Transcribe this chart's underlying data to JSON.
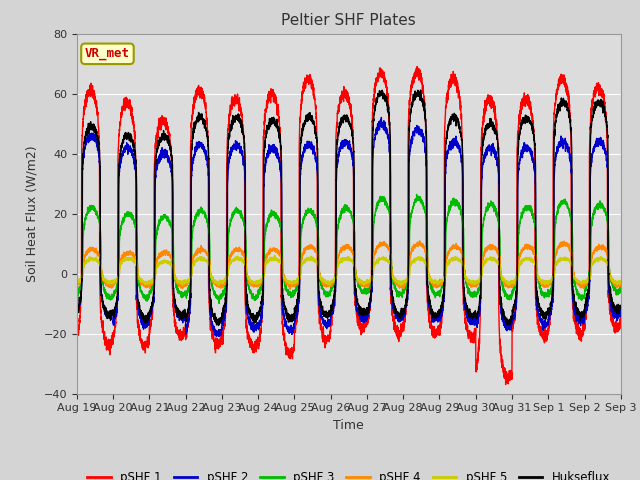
{
  "title": "Peltier SHF Plates",
  "ylabel": "Soil Heat Flux (W/m2)",
  "xlabel": "Time",
  "ylim": [
    -40,
    80
  ],
  "yticks": [
    -40,
    -20,
    0,
    20,
    40,
    60,
    80
  ],
  "plot_bg_color": "#dcdcdc",
  "fig_bg_color": "#d4d4d4",
  "vr_met_label": "VR_met",
  "legend_entries": [
    "pSHF 1",
    "pSHF 2",
    "pSHF 3",
    "pSHF 4",
    "pSHF 5",
    "Hukseflux"
  ],
  "line_colors": [
    "#ff0000",
    "#0000cc",
    "#00bb00",
    "#ff8800",
    "#cccc00",
    "#000000"
  ],
  "line_widths": [
    1.0,
    1.0,
    1.0,
    1.0,
    1.0,
    1.0
  ],
  "x_tick_labels": [
    "Aug 19",
    "Aug 20",
    "Aug 21",
    "Aug 22",
    "Aug 23",
    "Aug 24",
    "Aug 25",
    "Aug 26",
    "Aug 27",
    "Aug 28",
    "Aug 29",
    "Aug 30",
    "Aug 31",
    "Sep 1",
    "Sep 2",
    "Sep 3"
  ],
  "n_days": 15,
  "samples_per_day": 288
}
